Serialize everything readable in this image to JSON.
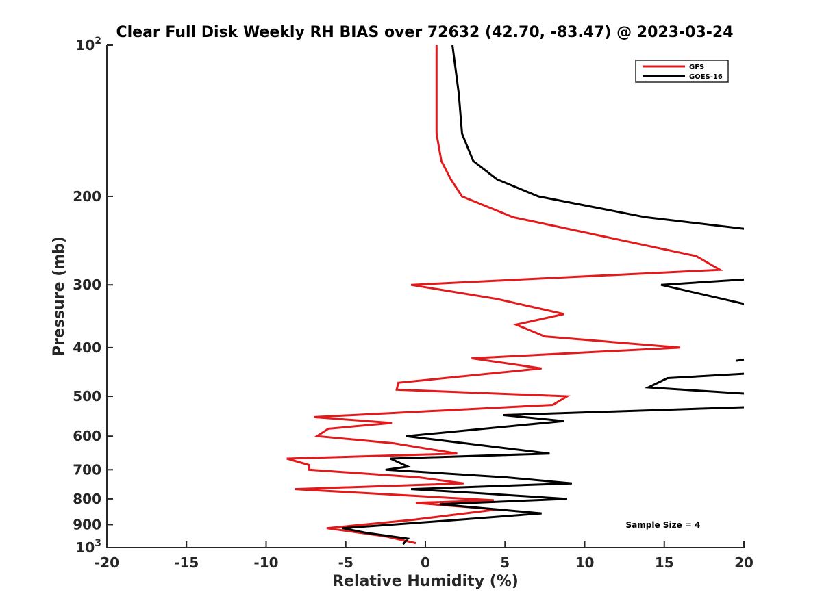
{
  "chart_data": {
    "type": "line",
    "title": "Clear Full Disk Weekly RH BIAS over 72632 (42.70, -83.47) @ 2023-03-24",
    "xlabel": "Relative Humidity (%)",
    "ylabel": "Pressure (mb)",
    "xlim": [
      -20,
      20
    ],
    "ylim": [
      100,
      1000
    ],
    "y_scale": "log",
    "y_reversed": true,
    "grid": false,
    "legend_position": "top-right",
    "x_ticks": [
      "-20",
      "-15",
      "-10",
      "-5",
      "0",
      "5",
      "10",
      "15",
      "20"
    ],
    "y_ticks": [
      {
        "value": 100,
        "base": "10",
        "exp": "2"
      },
      {
        "value": 200,
        "base": "200",
        "exp": ""
      },
      {
        "value": 300,
        "base": "300",
        "exp": ""
      },
      {
        "value": 400,
        "base": "400",
        "exp": ""
      },
      {
        "value": 500,
        "base": "500",
        "exp": ""
      },
      {
        "value": 600,
        "base": "600",
        "exp": ""
      },
      {
        "value": 700,
        "base": "700",
        "exp": ""
      },
      {
        "value": 800,
        "base": "800",
        "exp": ""
      },
      {
        "value": 900,
        "base": "900",
        "exp": ""
      },
      {
        "value": 1000,
        "base": "10",
        "exp": "3"
      }
    ],
    "annotation": "Sample Size = 4",
    "series": [
      {
        "name": "GFS",
        "color": "#e31a1c",
        "points": [
          [
            0.7,
            100
          ],
          [
            0.7,
            125
          ],
          [
            0.7,
            150
          ],
          [
            1.0,
            170
          ],
          [
            1.6,
            185
          ],
          [
            2.3,
            200
          ],
          [
            5.5,
            220
          ],
          [
            17.0,
            263
          ],
          [
            18.5,
            280
          ],
          [
            -0.9,
            300
          ],
          [
            4.5,
            320
          ],
          [
            8.7,
            343
          ],
          [
            5.7,
            360
          ],
          [
            7.5,
            380
          ],
          [
            16.0,
            400
          ],
          [
            2.9,
            420
          ],
          [
            7.3,
            440
          ],
          [
            -1.7,
            470
          ],
          [
            -1.8,
            485
          ],
          [
            8.9,
            500
          ],
          [
            8.0,
            520
          ],
          [
            -7.0,
            550
          ],
          [
            -2.1,
            565
          ],
          [
            -6.1,
            580
          ],
          [
            -6.8,
            600
          ],
          [
            -2.0,
            620
          ],
          [
            2.0,
            650
          ],
          [
            -8.7,
            665
          ],
          [
            -7.3,
            685
          ],
          [
            -7.3,
            700
          ],
          [
            -0.4,
            725
          ],
          [
            2.4,
            745
          ],
          [
            -8.2,
            765
          ],
          [
            -3.5,
            780
          ],
          [
            4.3,
            805
          ],
          [
            -0.6,
            815
          ],
          [
            4.5,
            840
          ],
          [
            -0.7,
            880
          ],
          [
            -6.2,
            915
          ],
          [
            -2.5,
            950
          ],
          [
            -0.6,
            980
          ]
        ]
      },
      {
        "name": "GOES-16",
        "color": "#000000",
        "points": [
          [
            1.7,
            100
          ],
          [
            2.1,
            125
          ],
          [
            2.3,
            150
          ],
          [
            3.0,
            170
          ],
          [
            4.5,
            185
          ],
          [
            7.1,
            200
          ],
          [
            13.8,
            220
          ],
          [
            20.5,
            233
          ],
          null,
          [
            20.5,
            292
          ],
          [
            14.8,
            300
          ],
          [
            20.5,
            330
          ],
          null,
          [
            20.5,
            420
          ],
          [
            19.5,
            425
          ],
          null,
          [
            20.5,
            450
          ],
          [
            15.2,
            460
          ],
          [
            14.0,
            480
          ],
          [
            20.5,
            495
          ],
          null,
          [
            20.5,
            525
          ],
          [
            4.9,
            545
          ],
          [
            8.7,
            560
          ],
          [
            -1.2,
            600
          ],
          [
            7.8,
            650
          ],
          [
            -2.2,
            665
          ],
          [
            -1.1,
            690
          ],
          [
            -2.5,
            700
          ],
          [
            5.1,
            725
          ],
          [
            9.2,
            745
          ],
          [
            -0.9,
            765
          ],
          [
            3.5,
            780
          ],
          [
            8.9,
            800
          ],
          [
            0.9,
            820
          ],
          [
            7.3,
            855
          ],
          [
            1.1,
            885
          ],
          [
            -5.2,
            915
          ],
          [
            -3.7,
            935
          ],
          [
            -1.1,
            960
          ],
          [
            -1.4,
            985
          ]
        ]
      }
    ]
  }
}
